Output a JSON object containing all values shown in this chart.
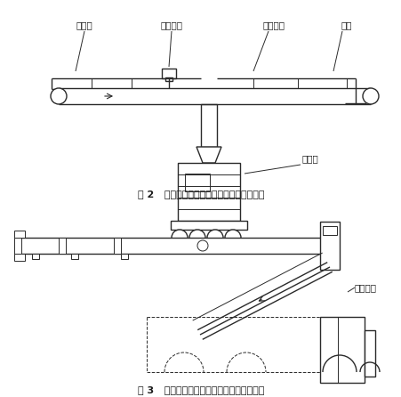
{
  "fig2_title": "图 2   袋装水泥计数检测装置安装在皮带机上",
  "fig3_title": "图 3   袋装水泥计数检测装置安装在装车机上",
  "label_pijiji": "皮带机",
  "label_jishu": "计数装置",
  "label_zhuanwan": "转弯滚子",
  "label_cao": "溜槽",
  "label_zhuangcheji": "装车机",
  "label_jishu3": "计数装置",
  "bg_color": "#ffffff",
  "line_color": "#2a2a2a",
  "text_color": "#1a1a1a"
}
